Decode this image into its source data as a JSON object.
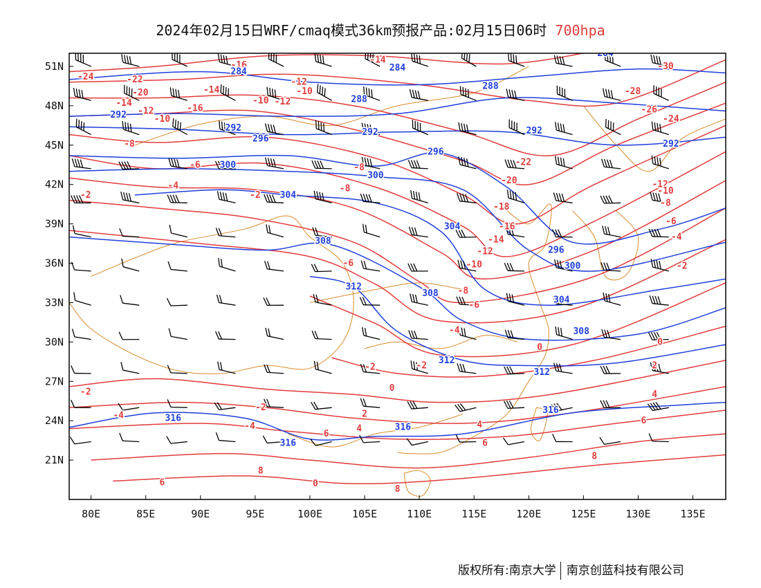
{
  "title": {
    "main": "2024年02月15日WRF/cmaq模式36km预报产品:02月15日06时",
    "level": "700hpa",
    "level_color": "#e23b3b"
  },
  "map": {
    "projection": "lat-lon",
    "lon_range": [
      78,
      138
    ],
    "lat_range": [
      18,
      52
    ],
    "lon_ticks": [
      "80E",
      "85E",
      "90E",
      "95E",
      "100E",
      "105E",
      "110E",
      "115E",
      "120E",
      "125E",
      "130E",
      "135E"
    ],
    "lat_ticks": [
      "51N",
      "48N",
      "45N",
      "42N",
      "39N",
      "36N",
      "33N",
      "30N",
      "27N",
      "24N",
      "21N"
    ],
    "colors": {
      "temperature": "#e23b3b",
      "geopotential": "#1f3fdc",
      "boundary": "#d98a2b",
      "wind": "#000000"
    },
    "geopotential_labels": [
      {
        "text": "284",
        "lon": 93.5,
        "lat": 50.6
      },
      {
        "text": "284",
        "lon": 108.0,
        "lat": 50.9
      },
      {
        "text": "284",
        "lon": 127.0,
        "lat": 52.0
      },
      {
        "text": "288",
        "lon": 104.5,
        "lat": 48.5
      },
      {
        "text": "288",
        "lon": 116.5,
        "lat": 49.5
      },
      {
        "text": "292",
        "lon": 82.5,
        "lat": 47.3
      },
      {
        "text": "292",
        "lon": 93.0,
        "lat": 46.3
      },
      {
        "text": "292",
        "lon": 105.5,
        "lat": 46.0
      },
      {
        "text": "292",
        "lon": 120.5,
        "lat": 46.1
      },
      {
        "text": "292",
        "lon": 133.0,
        "lat": 45.1
      },
      {
        "text": "296",
        "lon": 95.5,
        "lat": 45.5
      },
      {
        "text": "296",
        "lon": 111.5,
        "lat": 44.5
      },
      {
        "text": "296",
        "lon": 122.5,
        "lat": 37.0
      },
      {
        "text": "300",
        "lon": 92.5,
        "lat": 43.5
      },
      {
        "text": "300",
        "lon": 106.0,
        "lat": 42.7
      },
      {
        "text": "300",
        "lon": 124.0,
        "lat": 35.8
      },
      {
        "text": "304",
        "lon": 98.0,
        "lat": 41.2
      },
      {
        "text": "304",
        "lon": 113.0,
        "lat": 38.8
      },
      {
        "text": "304",
        "lon": 123.0,
        "lat": 33.2
      },
      {
        "text": "308",
        "lon": 101.2,
        "lat": 37.7
      },
      {
        "text": "308",
        "lon": 124.8,
        "lat": 30.8
      },
      {
        "text": "308",
        "lon": 111.0,
        "lat": 33.7
      },
      {
        "text": "312",
        "lon": 104.0,
        "lat": 34.2
      },
      {
        "text": "312",
        "lon": 112.5,
        "lat": 28.6
      },
      {
        "text": "312",
        "lon": 121.2,
        "lat": 27.7
      },
      {
        "text": "316",
        "lon": 87.5,
        "lat": 24.2
      },
      {
        "text": "316",
        "lon": 98.0,
        "lat": 22.3
      },
      {
        "text": "316",
        "lon": 108.5,
        "lat": 23.5
      },
      {
        "text": "316",
        "lon": 122.0,
        "lat": 24.8
      }
    ],
    "temperature_labels": [
      {
        "text": "-14",
        "lon": 106.2,
        "lat": 51.5
      },
      {
        "text": "-16",
        "lon": 93.5,
        "lat": 51.1
      },
      {
        "text": "-24",
        "lon": 79.5,
        "lat": 50.2
      },
      {
        "text": "-22",
        "lon": 84.0,
        "lat": 50.0
      },
      {
        "text": "-20",
        "lon": 84.5,
        "lat": 49.0
      },
      {
        "text": "-14",
        "lon": 91.0,
        "lat": 49.2
      },
      {
        "text": "-12",
        "lon": 99.0,
        "lat": 49.8
      },
      {
        "text": "-10",
        "lon": 99.5,
        "lat": 49.1
      },
      {
        "text": "-10",
        "lon": 95.5,
        "lat": 48.4
      },
      {
        "text": "-12",
        "lon": 97.5,
        "lat": 48.3
      },
      {
        "text": "-16",
        "lon": 89.5,
        "lat": 47.8
      },
      {
        "text": "-14",
        "lon": 83.0,
        "lat": 48.2
      },
      {
        "text": "-12",
        "lon": 85.0,
        "lat": 47.6
      },
      {
        "text": "-10",
        "lon": 86.5,
        "lat": 47.0
      },
      {
        "text": "-8",
        "lon": 83.5,
        "lat": 45.1
      },
      {
        "text": "-6",
        "lon": 89.5,
        "lat": 43.5
      },
      {
        "text": "-4",
        "lon": 87.5,
        "lat": 41.9
      },
      {
        "text": "-2",
        "lon": 79.5,
        "lat": 41.2
      },
      {
        "text": "-2",
        "lon": 95.0,
        "lat": 41.2
      },
      {
        "text": "-8",
        "lon": 103.2,
        "lat": 41.7
      },
      {
        "text": "-8",
        "lon": 104.5,
        "lat": 43.3
      },
      {
        "text": "-6",
        "lon": 103.5,
        "lat": 36.0
      },
      {
        "text": "-28",
        "lon": 129.5,
        "lat": 49.1
      },
      {
        "text": "-26",
        "lon": 131.0,
        "lat": 47.7
      },
      {
        "text": "-24",
        "lon": 133.0,
        "lat": 47.0
      },
      {
        "text": "-30",
        "lon": 132.5,
        "lat": 51.0
      },
      {
        "text": "-22",
        "lon": 119.5,
        "lat": 43.7
      },
      {
        "text": "-20",
        "lon": 118.2,
        "lat": 42.3
      },
      {
        "text": "-18",
        "lon": 117.5,
        "lat": 40.3
      },
      {
        "text": "-16",
        "lon": 118.0,
        "lat": 38.8
      },
      {
        "text": "-14",
        "lon": 117.0,
        "lat": 37.8
      },
      {
        "text": "-12",
        "lon": 116.0,
        "lat": 36.9
      },
      {
        "text": "-10",
        "lon": 115.0,
        "lat": 35.9
      },
      {
        "text": "-8",
        "lon": 114.0,
        "lat": 33.9
      },
      {
        "text": "-6",
        "lon": 115.0,
        "lat": 32.8
      },
      {
        "text": "-4",
        "lon": 113.2,
        "lat": 30.9
      },
      {
        "text": "-2",
        "lon": 110.2,
        "lat": 28.2
      },
      {
        "text": "-2",
        "lon": 105.5,
        "lat": 28.1
      },
      {
        "text": "0",
        "lon": 121.0,
        "lat": 29.6
      },
      {
        "text": "0",
        "lon": 107.5,
        "lat": 26.5
      },
      {
        "text": "-12",
        "lon": 132.0,
        "lat": 42.0
      },
      {
        "text": "-10",
        "lon": 132.5,
        "lat": 41.5
      },
      {
        "text": "-8",
        "lon": 132.5,
        "lat": 40.6
      },
      {
        "text": "-6",
        "lon": 133.0,
        "lat": 39.2
      },
      {
        "text": "-4",
        "lon": 133.5,
        "lat": 38.0
      },
      {
        "text": "-2",
        "lon": 134.0,
        "lat": 35.8
      },
      {
        "text": "0",
        "lon": 132.0,
        "lat": 30.0
      },
      {
        "text": "2",
        "lon": 131.5,
        "lat": 28.2
      },
      {
        "text": "4",
        "lon": 131.5,
        "lat": 26.0
      },
      {
        "text": "6",
        "lon": 130.5,
        "lat": 24.0
      },
      {
        "text": "8",
        "lon": 126.0,
        "lat": 21.3
      },
      {
        "text": "-2",
        "lon": 79.5,
        "lat": 26.2
      },
      {
        "text": "-4",
        "lon": 82.5,
        "lat": 24.4
      },
      {
        "text": "-2",
        "lon": 95.5,
        "lat": 25.0
      },
      {
        "text": "-4",
        "lon": 94.5,
        "lat": 23.6
      },
      {
        "text": "6",
        "lon": 101.5,
        "lat": 23.0
      },
      {
        "text": "4",
        "lon": 104.5,
        "lat": 23.4
      },
      {
        "text": "2",
        "lon": 105.0,
        "lat": 24.5
      },
      {
        "text": "4",
        "lon": 115.5,
        "lat": 23.7
      },
      {
        "text": "6",
        "lon": 116.0,
        "lat": 22.3
      },
      {
        "text": "6",
        "lon": 86.5,
        "lat": 19.3
      },
      {
        "text": "8",
        "lon": 95.5,
        "lat": 20.2
      },
      {
        "text": "0",
        "lon": 100.5,
        "lat": 19.2
      },
      {
        "text": "8",
        "lon": 108.0,
        "lat": 18.8
      }
    ]
  },
  "footer": {
    "left": "版权所有:南京大学",
    "right": "南京创蓝科技有限公司"
  }
}
